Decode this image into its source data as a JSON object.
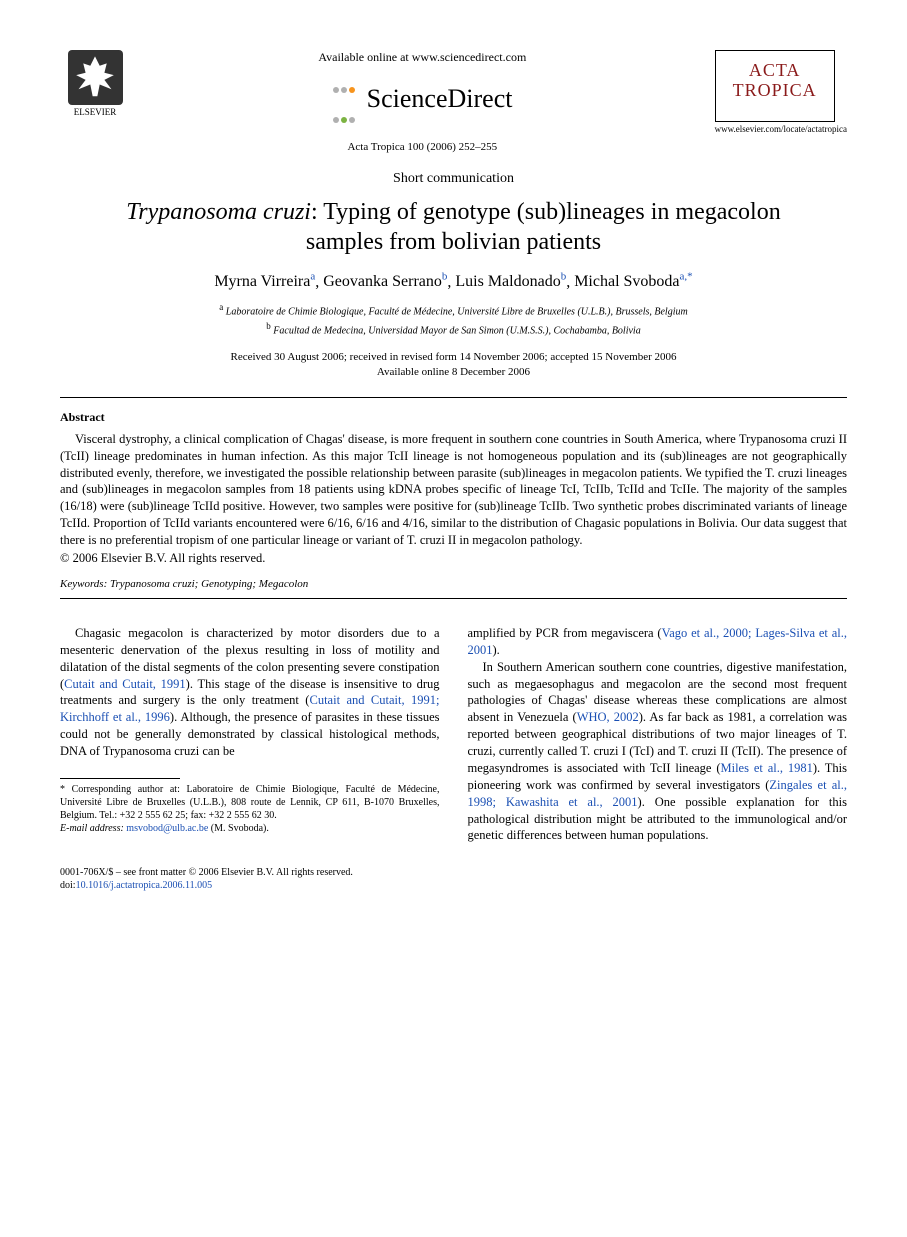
{
  "header": {
    "publisher_name": "ELSEVIER",
    "available_text": "Available online at www.sciencedirect.com",
    "sd_brand": "ScienceDirect",
    "journal_ref": "Acta Tropica 100 (2006) 252–255",
    "journal_box_line1": "ACTA",
    "journal_box_line2": "TROPICA",
    "journal_url": "www.elsevier.com/locate/actatropica"
  },
  "article": {
    "type": "Short communication",
    "title_italic": "Trypanosoma cruzi",
    "title_rest": ": Typing of genotype (sub)lineages in megacolon samples from bolivian patients",
    "authors": [
      {
        "name": "Myrna Virreira",
        "marks": "a"
      },
      {
        "name": "Geovanka Serrano",
        "marks": "b"
      },
      {
        "name": "Luis Maldonado",
        "marks": "b"
      },
      {
        "name": "Michal Svoboda",
        "marks": "a,*"
      }
    ],
    "affiliations": {
      "a": "Laboratoire de Chimie Biologique, Faculté de Médecine, Université Libre de Bruxelles (U.L.B.), Brussels, Belgium",
      "b": "Facultad de Medecina, Universidad Mayor de San Simon (U.M.S.S.), Cochabamba, Bolivia"
    },
    "dates_line1": "Received 30 August 2006; received in revised form 14 November 2006; accepted 15 November 2006",
    "dates_line2": "Available online 8 December 2006"
  },
  "abstract": {
    "heading": "Abstract",
    "body": "Visceral dystrophy, a clinical complication of Chagas' disease, is more frequent in southern cone countries in South America, where Trypanosoma cruzi II (TcII) lineage predominates in human infection. As this major TcII lineage is not homogeneous population and its (sub)lineages are not geographically distributed evenly, therefore, we investigated the possible relationship between parasite (sub)lineages in megacolon patients. We typified the T. cruzi lineages and (sub)lineages in megacolon samples from 18 patients using kDNA probes specific of lineage TcI, TcIIb, TcIId and TcIIe. The majority of the samples (16/18) were (sub)lineage TcIId positive. However, two samples were positive for (sub)lineage TcIIb. Two synthetic probes discriminated variants of lineage TcIId. Proportion of TcIId variants encountered were 6/16, 6/16 and 4/16, similar to the distribution of Chagasic populations in Bolivia. Our data suggest that there is no preferential tropism of one particular lineage or variant of T. cruzi II in megacolon pathology.",
    "copyright": "© 2006 Elsevier B.V. All rights reserved.",
    "keywords_label": "Keywords:",
    "keywords": " Trypanosoma cruzi; Genotyping; Megacolon"
  },
  "body": {
    "col1_p1_a": "Chagasic megacolon is characterized by motor disorders due to a mesenteric denervation of the plexus resulting in loss of motility and dilatation of the distal segments of the colon presenting severe constipation (",
    "col1_ref1": "Cutait and Cutait, 1991",
    "col1_p1_b": "). This stage of the disease is insensitive to drug treatments and surgery is the only treatment (",
    "col1_ref2": "Cutait and Cutait, 1991; Kirchhoff et al., 1996",
    "col1_p1_c": "). Although, the presence of parasites in these tissues could not be generally demonstrated by classical histological methods, DNA of Trypanosoma cruzi can be",
    "col2_p1_a": "amplified by PCR from megaviscera (",
    "col2_ref1": "Vago et al., 2000; Lages-Silva et al., 2001",
    "col2_p1_b": ").",
    "col2_p2_a": "In Southern American southern cone countries, digestive manifestation, such as megaesophagus and megacolon are the second most frequent pathologies of Chagas' disease whereas these complications are almost absent in Venezuela (",
    "col2_ref2": "WHO, 2002",
    "col2_p2_b": "). As far back as 1981, a correlation was reported between geographical distributions of two major lineages of T. cruzi, currently called T. cruzi I (TcI) and T. cruzi II (TcII). The presence of megasyndromes is associated with TcII lineage (",
    "col2_ref3": "Miles et al., 1981",
    "col2_p2_c": "). This pioneering work was confirmed by several investigators (",
    "col2_ref4": "Zingales et al., 1998; Kawashita et al., 2001",
    "col2_p2_d": "). One possible explanation for this pathological distribution might be attributed to the immunological and/or genetic differences between human populations."
  },
  "footnote": {
    "corr": "* Corresponding author at: Laboratoire de Chimie Biologique, Faculté de Médecine, Université Libre de Bruxelles (U.L.B.), 808 route de Lennik, CP 611, B-1070 Bruxelles, Belgium. Tel.: +32 2 555 62 25; fax: +32 2 555 62 30.",
    "email_label": "E-mail address:",
    "email": "msvobod@ulb.ac.be",
    "email_author": " (M. Svoboda)."
  },
  "footer": {
    "line1": "0001-706X/$ – see front matter © 2006 Elsevier B.V. All rights reserved.",
    "doi_label": "doi:",
    "doi": "10.1016/j.actatropica.2006.11.005"
  },
  "colors": {
    "link": "#1a4fb3",
    "journal_red": "#8a1a1a",
    "sd_orange": "#f7941d",
    "sd_gray": "#b0b0b0",
    "sd_green": "#7cb342"
  }
}
